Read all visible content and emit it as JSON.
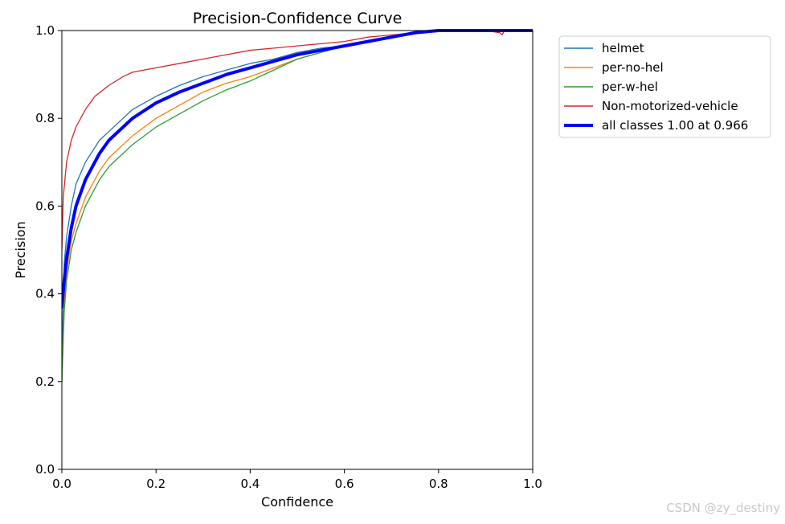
{
  "chart_data": {
    "type": "line",
    "title": "Precision-Confidence Curve",
    "xlabel": "Confidence",
    "ylabel": "Precision",
    "xlim": [
      0.0,
      1.0
    ],
    "ylim": [
      0.0,
      1.0
    ],
    "xticks": [
      0.0,
      0.2,
      0.4,
      0.6,
      0.8,
      1.0
    ],
    "yticks": [
      0.0,
      0.2,
      0.4,
      0.6,
      0.8,
      1.0
    ],
    "xtick_labels": [
      "0.0",
      "0.2",
      "0.4",
      "0.6",
      "0.8",
      "1.0"
    ],
    "ytick_labels": [
      "0.0",
      "0.2",
      "0.4",
      "0.6",
      "0.8",
      "1.0"
    ],
    "grid": false,
    "legend_position": "outside upper right",
    "series": [
      {
        "name": "helmet",
        "color": "#1f77b4",
        "points": [
          [
            0.0,
            0.25
          ],
          [
            0.005,
            0.47
          ],
          [
            0.01,
            0.53
          ],
          [
            0.02,
            0.6
          ],
          [
            0.03,
            0.65
          ],
          [
            0.05,
            0.7
          ],
          [
            0.08,
            0.75
          ],
          [
            0.1,
            0.77
          ],
          [
            0.13,
            0.8
          ],
          [
            0.15,
            0.82
          ],
          [
            0.2,
            0.85
          ],
          [
            0.25,
            0.875
          ],
          [
            0.3,
            0.895
          ],
          [
            0.35,
            0.91
          ],
          [
            0.4,
            0.925
          ],
          [
            0.45,
            0.935
          ],
          [
            0.5,
            0.95
          ],
          [
            0.55,
            0.96
          ],
          [
            0.6,
            0.965
          ],
          [
            0.65,
            0.975
          ],
          [
            0.7,
            0.985
          ],
          [
            0.75,
            0.995
          ],
          [
            0.8,
            1.0
          ],
          [
            1.0,
            1.0
          ]
        ]
      },
      {
        "name": "per-no-hel",
        "color": "#ff7f0e",
        "points": [
          [
            0.0,
            0.2
          ],
          [
            0.005,
            0.38
          ],
          [
            0.01,
            0.45
          ],
          [
            0.02,
            0.52
          ],
          [
            0.03,
            0.56
          ],
          [
            0.05,
            0.62
          ],
          [
            0.08,
            0.68
          ],
          [
            0.1,
            0.71
          ],
          [
            0.13,
            0.74
          ],
          [
            0.15,
            0.76
          ],
          [
            0.2,
            0.8
          ],
          [
            0.25,
            0.83
          ],
          [
            0.3,
            0.86
          ],
          [
            0.35,
            0.88
          ],
          [
            0.4,
            0.895
          ],
          [
            0.45,
            0.915
          ],
          [
            0.5,
            0.935
          ],
          [
            0.55,
            0.95
          ],
          [
            0.6,
            0.965
          ],
          [
            0.65,
            0.975
          ],
          [
            0.7,
            0.985
          ],
          [
            0.75,
            0.995
          ],
          [
            0.8,
            1.0
          ],
          [
            1.0,
            1.0
          ]
        ]
      },
      {
        "name": "per-w-hel",
        "color": "#2ca02c",
        "points": [
          [
            0.0,
            0.2
          ],
          [
            0.005,
            0.36
          ],
          [
            0.01,
            0.43
          ],
          [
            0.02,
            0.5
          ],
          [
            0.03,
            0.54
          ],
          [
            0.05,
            0.6
          ],
          [
            0.08,
            0.66
          ],
          [
            0.1,
            0.69
          ],
          [
            0.13,
            0.72
          ],
          [
            0.15,
            0.74
          ],
          [
            0.2,
            0.78
          ],
          [
            0.25,
            0.81
          ],
          [
            0.3,
            0.84
          ],
          [
            0.35,
            0.865
          ],
          [
            0.4,
            0.885
          ],
          [
            0.45,
            0.91
          ],
          [
            0.5,
            0.935
          ],
          [
            0.55,
            0.95
          ],
          [
            0.6,
            0.965
          ],
          [
            0.65,
            0.975
          ],
          [
            0.7,
            0.985
          ],
          [
            0.75,
            0.995
          ],
          [
            0.8,
            1.0
          ],
          [
            1.0,
            1.0
          ]
        ]
      },
      {
        "name": "Non-motorized-vehicle",
        "color": "#d62728",
        "points": [
          [
            0.0,
            0.5
          ],
          [
            0.003,
            0.62
          ],
          [
            0.01,
            0.7
          ],
          [
            0.02,
            0.75
          ],
          [
            0.03,
            0.78
          ],
          [
            0.05,
            0.82
          ],
          [
            0.07,
            0.85
          ],
          [
            0.1,
            0.875
          ],
          [
            0.13,
            0.895
          ],
          [
            0.15,
            0.905
          ],
          [
            0.2,
            0.915
          ],
          [
            0.25,
            0.925
          ],
          [
            0.3,
            0.935
          ],
          [
            0.35,
            0.945
          ],
          [
            0.4,
            0.955
          ],
          [
            0.45,
            0.96
          ],
          [
            0.5,
            0.965
          ],
          [
            0.55,
            0.97
          ],
          [
            0.6,
            0.975
          ],
          [
            0.65,
            0.985
          ],
          [
            0.7,
            0.99
          ],
          [
            0.75,
            0.995
          ],
          [
            0.8,
            1.0
          ],
          [
            0.9,
            1.0
          ],
          [
            0.93,
            0.995
          ],
          [
            0.935,
            0.99
          ],
          [
            0.94,
            1.0
          ],
          [
            1.0,
            1.0
          ]
        ]
      },
      {
        "name": "all classes 1.00 at 0.966",
        "color": "#0000ff",
        "points": [
          [
            0.0,
            0.37
          ],
          [
            0.005,
            0.43
          ],
          [
            0.01,
            0.48
          ],
          [
            0.02,
            0.55
          ],
          [
            0.03,
            0.6
          ],
          [
            0.05,
            0.66
          ],
          [
            0.08,
            0.72
          ],
          [
            0.1,
            0.75
          ],
          [
            0.13,
            0.78
          ],
          [
            0.15,
            0.8
          ],
          [
            0.2,
            0.835
          ],
          [
            0.25,
            0.86
          ],
          [
            0.3,
            0.88
          ],
          [
            0.35,
            0.9
          ],
          [
            0.4,
            0.915
          ],
          [
            0.45,
            0.93
          ],
          [
            0.5,
            0.945
          ],
          [
            0.55,
            0.955
          ],
          [
            0.6,
            0.965
          ],
          [
            0.65,
            0.975
          ],
          [
            0.7,
            0.985
          ],
          [
            0.75,
            0.995
          ],
          [
            0.8,
            1.0
          ],
          [
            1.0,
            1.0
          ]
        ]
      }
    ]
  },
  "watermark": "CSDN @zy_destiny"
}
